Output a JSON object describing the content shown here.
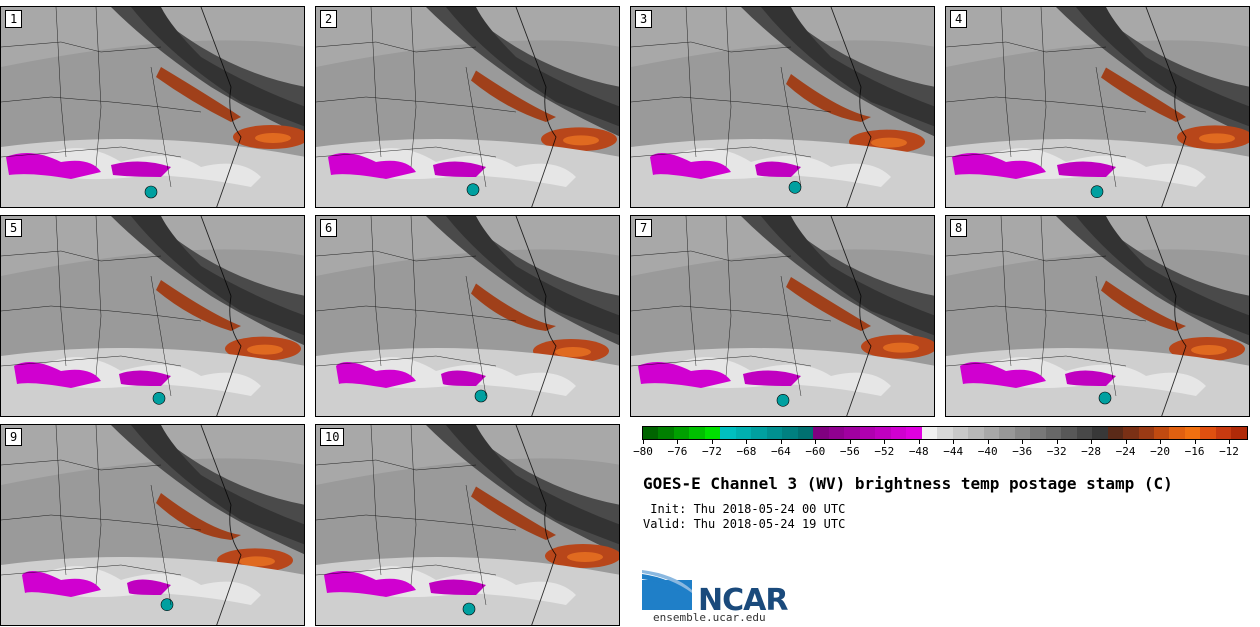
{
  "panels": [
    {
      "label": "1"
    },
    {
      "label": "2"
    },
    {
      "label": "3"
    },
    {
      "label": "4"
    },
    {
      "label": "5"
    },
    {
      "label": "6"
    },
    {
      "label": "7"
    },
    {
      "label": "8"
    },
    {
      "label": "9"
    },
    {
      "label": "10"
    }
  ],
  "colorbar": {
    "colors": [
      "#006400",
      "#008000",
      "#00a000",
      "#00c000",
      "#00e000",
      "#00bfbf",
      "#00b0b0",
      "#00a0a0",
      "#009090",
      "#008080",
      "#007070",
      "#800080",
      "#900090",
      "#a000a0",
      "#b000b0",
      "#c000c0",
      "#d000d0",
      "#e000e0",
      "#f0f0f0",
      "#d8d8d8",
      "#c8c8c8",
      "#b8b8b8",
      "#a8a8a8",
      "#989898",
      "#888888",
      "#787878",
      "#686868",
      "#585858",
      "#484848",
      "#383838",
      "#5a2a18",
      "#7a3015",
      "#9a3a14",
      "#c04a10",
      "#e06010",
      "#f07010",
      "#e05010",
      "#c83a10",
      "#b02a08"
    ],
    "ticks": [
      "−80",
      "−76",
      "−72",
      "−68",
      "−64",
      "−60",
      "−56",
      "−52",
      "−48",
      "−44",
      "−40",
      "−36",
      "−32",
      "−28",
      "−24",
      "−20",
      "−16",
      "−12"
    ]
  },
  "title": "GOES-E Channel 3 (WV) brightness temp postage stamp (C)",
  "init_label": " Init: Thu 2018-05-24 00 UTC",
  "valid_label": "Valid: Thu 2018-05-24 19 UTC",
  "logo": {
    "text": "NCAR",
    "url": "ensemble.ucar.edu"
  }
}
